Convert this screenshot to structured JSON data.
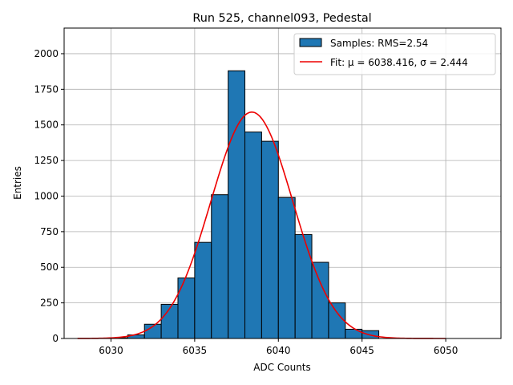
{
  "chart_data": {
    "type": "bar",
    "title": "Run 525, channel093, Pedestal",
    "xlabel": "ADC Counts",
    "ylabel": "Entries",
    "xlim": [
      6027.2,
      6053.3
    ],
    "ylim": [
      0,
      2180
    ],
    "xticks": [
      6030,
      6035,
      6040,
      6045,
      6050
    ],
    "yticks": [
      0,
      250,
      500,
      750,
      1000,
      1250,
      1500,
      1750,
      2000
    ],
    "grid": true,
    "legend_position": "top-right",
    "bin_width": 1,
    "bins": [
      {
        "left": 6030,
        "count": 5
      },
      {
        "left": 6031,
        "count": 25
      },
      {
        "left": 6032,
        "count": 100
      },
      {
        "left": 6033,
        "count": 240
      },
      {
        "left": 6034,
        "count": 425
      },
      {
        "left": 6035,
        "count": 675
      },
      {
        "left": 6036,
        "count": 1010
      },
      {
        "left": 6037,
        "count": 1880
      },
      {
        "left": 6038,
        "count": 1450
      },
      {
        "left": 6039,
        "count": 1385
      },
      {
        "left": 6040,
        "count": 990
      },
      {
        "left": 6041,
        "count": 730
      },
      {
        "left": 6042,
        "count": 535
      },
      {
        "left": 6043,
        "count": 250
      },
      {
        "left": 6044,
        "count": 65
      },
      {
        "left": 6045,
        "count": 55
      }
    ],
    "fit": {
      "mu": 6038.416,
      "sigma": 2.444,
      "amplitude": 1590,
      "x_range": [
        6028,
        6050
      ]
    },
    "series": [
      {
        "name": "Samples: RMS=2.54",
        "color": "#1f77b4",
        "kind": "histogram"
      },
      {
        "name": "Fit: μ = 6038.416, σ = 2.444",
        "color": "#ee0000",
        "kind": "line"
      }
    ]
  }
}
